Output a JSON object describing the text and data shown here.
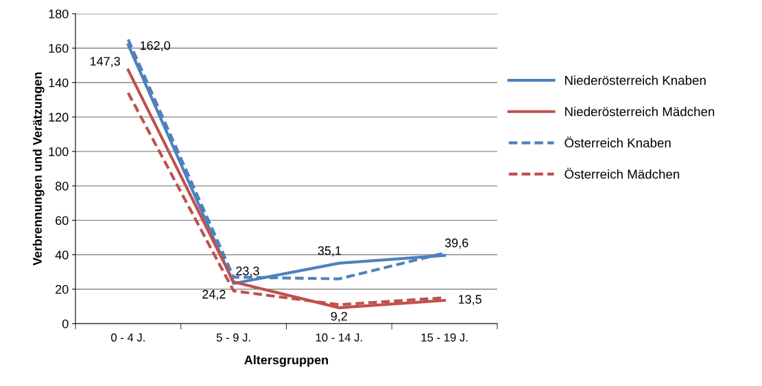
{
  "chart_data": {
    "type": "line",
    "xlabel": "Altersgruppen",
    "ylabel": "Verbrennungen und Verätzungen",
    "categories": [
      "0 - 4 J.",
      "5 - 9 J.",
      "10 - 14 J.",
      "15 - 19 J."
    ],
    "series": [
      {
        "name": "Niederösterreich Knaben",
        "color": "#4f81bd",
        "line_style": "solid",
        "values": [
          162.0,
          23.3,
          35.1,
          39.6
        ],
        "value_labels": [
          "162,0",
          "23,3",
          "35,1",
          "39,6"
        ]
      },
      {
        "name": "Niederösterreich Mädchen",
        "color": "#c0504d",
        "line_style": "solid",
        "values": [
          147.3,
          24.2,
          9.2,
          13.5
        ],
        "value_labels": [
          "147,3",
          "24,2",
          "9,2",
          "13,5"
        ]
      },
      {
        "name": "Österreich Knaben",
        "color": "#4f81bd",
        "line_style": "dashed",
        "values": [
          165,
          27,
          26,
          41
        ]
      },
      {
        "name": "Österreich Mädchen",
        "color": "#c0504d",
        "line_style": "dashed",
        "values": [
          134,
          19,
          11,
          15
        ]
      }
    ],
    "ylim": [
      0,
      180
    ],
    "yticks": [
      0,
      20,
      40,
      60,
      80,
      100,
      120,
      140,
      160,
      180
    ],
    "grid": "y",
    "legend": "right",
    "marker": "none"
  }
}
